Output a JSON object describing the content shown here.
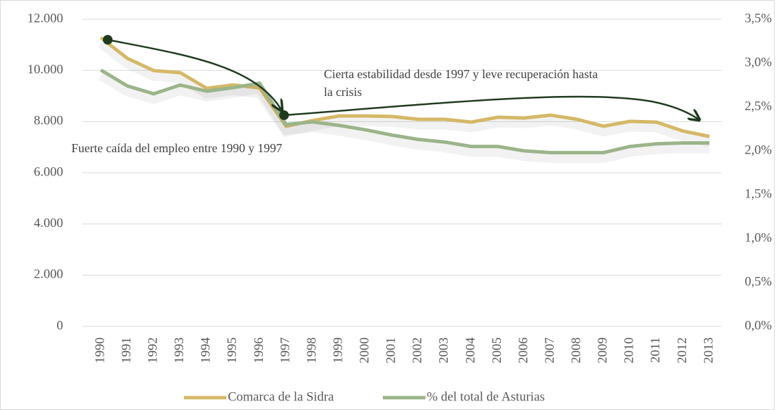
{
  "chart_data": {
    "type": "line",
    "annotations": [
      "Fuerte caída del empleo entre 1990 y 1997",
      [
        "Cierta estabilidad desde 1997 y leve recuperación hasta",
        "la crisis"
      ]
    ],
    "categories": [
      "1990",
      "1991",
      "1992",
      "1993",
      "1994",
      "1995",
      "1996",
      "1997",
      "1998",
      "1999",
      "2000",
      "2001",
      "2002",
      "2003",
      "2004",
      "2005",
      "2006",
      "2007",
      "2008",
      "2009",
      "2010",
      "2011",
      "2012",
      "2013"
    ],
    "series": [
      {
        "name": "Comarca de la Sidra",
        "color": "#d5b867",
        "values": [
          11280,
          10470,
          9990,
          9910,
          9300,
          9430,
          9320,
          7820,
          8040,
          8220,
          8220,
          8200,
          8090,
          8090,
          7980,
          8170,
          8140,
          8250,
          8090,
          7820,
          8010,
          7980,
          7630,
          7420
        ]
      },
      {
        "name": "% del total de Asturias",
        "color": "#9bb48a",
        "axis": "y2",
        "values": [
          2.92,
          2.74,
          2.65,
          2.75,
          2.68,
          2.72,
          2.77,
          2.3,
          2.33,
          2.29,
          2.24,
          2.18,
          2.13,
          2.1,
          2.05,
          2.05,
          2.0,
          1.98,
          1.98,
          1.98,
          2.05,
          2.08,
          2.09,
          2.09
        ]
      }
    ],
    "ylim": [
      0,
      12000
    ],
    "yticks": [
      0,
      {
        "value": 2000,
        "label": "2.000"
      },
      {
        "value": 4000,
        "label": "4.000"
      },
      {
        "value": 6000,
        "label": "6.000"
      },
      {
        "value": 8000,
        "label": "8.000"
      },
      {
        "value": 10000,
        "label": "10.000"
      },
      {
        "value": 12000,
        "label": "12.000"
      }
    ],
    "y2lim": [
      0,
      3.5
    ],
    "y2ticks": [
      {
        "value": 0,
        "label": "0,0%"
      },
      {
        "value": 0.5,
        "label": "0,5%"
      },
      {
        "value": 1,
        "label": "1,0%"
      },
      {
        "value": 1.5,
        "label": "1,5%"
      },
      {
        "value": 2,
        "label": "2,0%"
      },
      {
        "value": 2.5,
        "label": "2,5%"
      },
      {
        "value": 3,
        "label": "3,0%"
      },
      {
        "value": 3.5,
        "label": "3,5%"
      }
    ],
    "grid": true,
    "legend": "bottom"
  }
}
